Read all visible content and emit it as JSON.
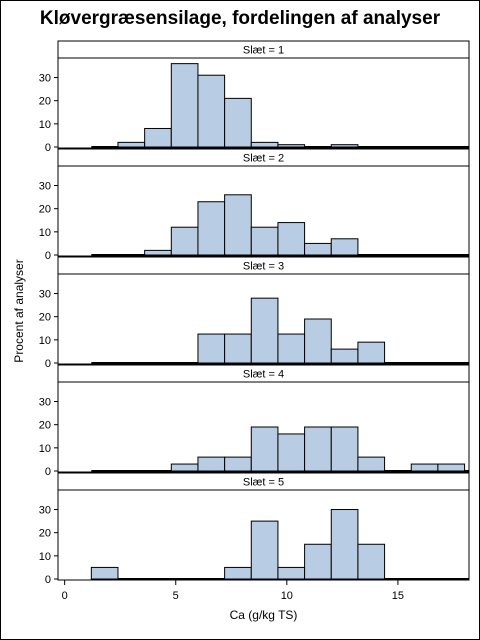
{
  "title": "Kløvergræsensilage, fordelingen af analyser",
  "chart_data": {
    "type": "bar",
    "title": "Kløvergræsensilage, fordelingen af analyser",
    "xlabel": "Ca (g/kg TS)",
    "ylabel": "Procent af analyser",
    "xlim": [
      -0.3,
      18.2
    ],
    "ylim": [
      0,
      38
    ],
    "xticks": [
      0,
      5,
      10,
      15
    ],
    "yticks": [
      0,
      10,
      20,
      30
    ],
    "bin_width": 1.2,
    "bar_fill": "#b8cce4",
    "bar_stroke": "#000000",
    "panels": [
      {
        "label": "Slæt = 1",
        "bins": [
          {
            "x0": 2.4,
            "x1": 3.6,
            "value": 2
          },
          {
            "x0": 3.6,
            "x1": 4.8,
            "value": 8
          },
          {
            "x0": 4.8,
            "x1": 6.0,
            "value": 36
          },
          {
            "x0": 6.0,
            "x1": 7.2,
            "value": 31
          },
          {
            "x0": 7.2,
            "x1": 8.4,
            "value": 21
          },
          {
            "x0": 8.4,
            "x1": 9.6,
            "value": 2
          },
          {
            "x0": 9.6,
            "x1": 10.8,
            "value": 1
          },
          {
            "x0": 10.8,
            "x1": 12.0,
            "value": 0
          },
          {
            "x0": 12.0,
            "x1": 13.2,
            "value": 1
          }
        ]
      },
      {
        "label": "Slæt = 2",
        "bins": [
          {
            "x0": 3.6,
            "x1": 4.8,
            "value": 2
          },
          {
            "x0": 4.8,
            "x1": 6.0,
            "value": 12
          },
          {
            "x0": 6.0,
            "x1": 7.2,
            "value": 23
          },
          {
            "x0": 7.2,
            "x1": 8.4,
            "value": 26
          },
          {
            "x0": 8.4,
            "x1": 9.6,
            "value": 12
          },
          {
            "x0": 9.6,
            "x1": 10.8,
            "value": 14
          },
          {
            "x0": 10.8,
            "x1": 12.0,
            "value": 5
          },
          {
            "x0": 12.0,
            "x1": 13.2,
            "value": 7
          }
        ]
      },
      {
        "label": "Slæt = 3",
        "bins": [
          {
            "x0": 6.0,
            "x1": 7.2,
            "value": 12.5
          },
          {
            "x0": 7.2,
            "x1": 8.4,
            "value": 12.5
          },
          {
            "x0": 8.4,
            "x1": 9.6,
            "value": 28
          },
          {
            "x0": 9.6,
            "x1": 10.8,
            "value": 12.5
          },
          {
            "x0": 10.8,
            "x1": 12.0,
            "value": 19
          },
          {
            "x0": 12.0,
            "x1": 13.2,
            "value": 6
          },
          {
            "x0": 13.2,
            "x1": 14.4,
            "value": 9
          }
        ]
      },
      {
        "label": "Slæt = 4",
        "bins": [
          {
            "x0": 4.8,
            "x1": 6.0,
            "value": 3
          },
          {
            "x0": 6.0,
            "x1": 7.2,
            "value": 6
          },
          {
            "x0": 7.2,
            "x1": 8.4,
            "value": 6
          },
          {
            "x0": 8.4,
            "x1": 9.6,
            "value": 19
          },
          {
            "x0": 9.6,
            "x1": 10.8,
            "value": 16
          },
          {
            "x0": 10.8,
            "x1": 12.0,
            "value": 19
          },
          {
            "x0": 12.0,
            "x1": 13.2,
            "value": 19
          },
          {
            "x0": 13.2,
            "x1": 14.4,
            "value": 6
          },
          {
            "x0": 15.6,
            "x1": 16.8,
            "value": 3
          },
          {
            "x0": 16.8,
            "x1": 18.0,
            "value": 3
          }
        ]
      },
      {
        "label": "Slæt = 5",
        "bins": [
          {
            "x0": 1.2,
            "x1": 2.4,
            "value": 5
          },
          {
            "x0": 7.2,
            "x1": 8.4,
            "value": 5
          },
          {
            "x0": 8.4,
            "x1": 9.6,
            "value": 25
          },
          {
            "x0": 9.6,
            "x1": 10.8,
            "value": 5
          },
          {
            "x0": 10.8,
            "x1": 12.0,
            "value": 15
          },
          {
            "x0": 12.0,
            "x1": 13.2,
            "value": 30
          },
          {
            "x0": 13.2,
            "x1": 14.4,
            "value": 15
          }
        ]
      }
    ]
  }
}
